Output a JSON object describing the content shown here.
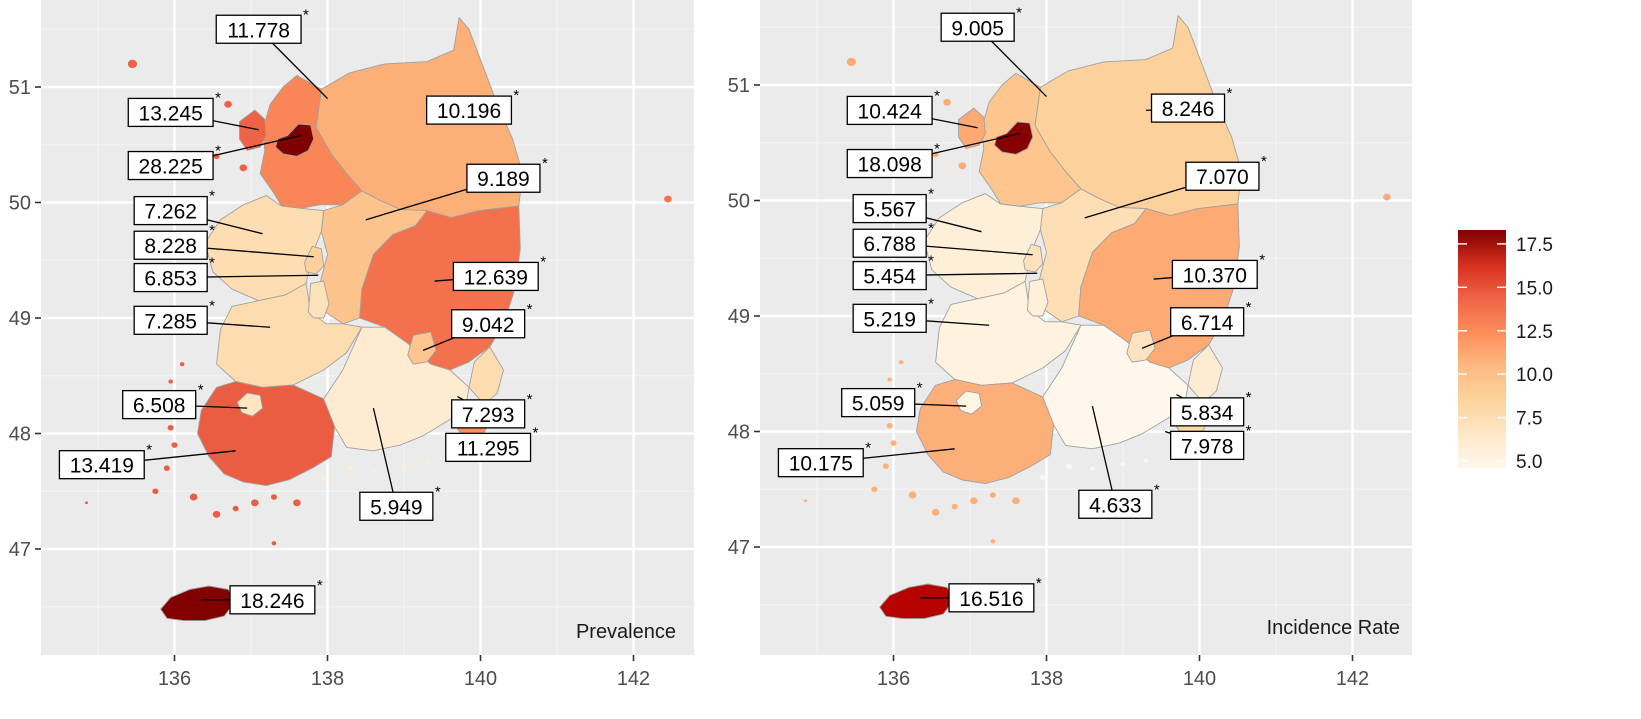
{
  "figure": {
    "x_axis_ticks": [
      136,
      138,
      140,
      142
    ],
    "y_axis_ticks": [
      47,
      48,
      49,
      50,
      51
    ],
    "significance_marker": "*"
  },
  "colors": {
    "scale": [
      "#fff7ec",
      "#fee8c8",
      "#fdd49e",
      "#fdbb84",
      "#fc8d59",
      "#ef6548",
      "#d7301f",
      "#b30000",
      "#7f0000"
    ],
    "panel_background": "#ebebeb",
    "grid": "#ffffff"
  },
  "legend": {
    "min": 4.6,
    "max": 18.3,
    "ticks": [
      "5.0",
      "7.5",
      "10.0",
      "12.5",
      "15.0",
      "17.5"
    ]
  },
  "chart_data": {
    "type": "choropleth",
    "xlim": [
      134.3,
      142.9
    ],
    "ylim": [
      46.14,
      51.76
    ],
    "x_ticks": [
      136,
      138,
      140,
      142
    ],
    "y_ticks": [
      47,
      48,
      49,
      50,
      51
    ],
    "legend_placement": "right",
    "grid": true,
    "panels": [
      {
        "title": "Prevalence",
        "values": {
          "gyeonggi": {
            "label": "11.778",
            "value": 11.778,
            "significant": true
          },
          "gangwon": {
            "label": "10.196",
            "value": 10.196,
            "significant": true
          },
          "incheon": {
            "label": "13.245",
            "value": 13.245,
            "significant": true
          },
          "seoul": {
            "label": "28.225",
            "value": 28.225,
            "significant": true
          },
          "chungbuk": {
            "label": "9.189",
            "value": 9.189,
            "significant": true
          },
          "chungnam": {
            "label": "7.262",
            "value": 7.262,
            "significant": true
          },
          "sejong": {
            "label": "8.228",
            "value": 8.228,
            "significant": true
          },
          "daejeon": {
            "label": "6.853",
            "value": 6.853,
            "significant": true
          },
          "gyeongbuk": {
            "label": "12.639",
            "value": 12.639,
            "significant": true
          },
          "jeonbuk": {
            "label": "7.285",
            "value": 7.285,
            "significant": true
          },
          "daegu": {
            "label": "9.042",
            "value": 9.042,
            "significant": true
          },
          "gwangju": {
            "label": "6.508",
            "value": 6.508,
            "significant": true
          },
          "ulsan": {
            "label": "7.293",
            "value": 7.293,
            "significant": true
          },
          "busan": {
            "label": "11.295",
            "value": 11.295,
            "significant": true
          },
          "jeonnam": {
            "label": "13.419",
            "value": 13.419,
            "significant": true
          },
          "gyeongnam": {
            "label": "5.949",
            "value": 5.949,
            "significant": true
          },
          "jeju": {
            "label": "18.246",
            "value": 18.246,
            "significant": true
          }
        }
      },
      {
        "title": "Incidence Rate",
        "values": {
          "gyeonggi": {
            "label": "9.005",
            "value": 9.005,
            "significant": true
          },
          "gangwon": {
            "label": "8.246",
            "value": 8.246,
            "significant": true
          },
          "incheon": {
            "label": "10.424",
            "value": 10.424,
            "significant": true
          },
          "seoul": {
            "label": "18.098",
            "value": 18.098,
            "significant": true
          },
          "chungbuk": {
            "label": "7.070",
            "value": 7.07,
            "significant": true
          },
          "chungnam": {
            "label": "5.567",
            "value": 5.567,
            "significant": true
          },
          "sejong": {
            "label": "6.788",
            "value": 6.788,
            "significant": true
          },
          "daejeon": {
            "label": "5.454",
            "value": 5.454,
            "significant": true
          },
          "gyeongbuk": {
            "label": "10.370",
            "value": 10.37,
            "significant": true
          },
          "jeonbuk": {
            "label": "5.219",
            "value": 5.219,
            "significant": true
          },
          "daegu": {
            "label": "6.714",
            "value": 6.714,
            "significant": true
          },
          "gwangju": {
            "label": "5.059",
            "value": 5.059,
            "significant": true
          },
          "ulsan": {
            "label": "5.834",
            "value": 5.834,
            "significant": true
          },
          "busan": {
            "label": "7.978",
            "value": 7.978,
            "significant": true
          },
          "jeonnam": {
            "label": "10.175",
            "value": 10.175,
            "significant": true
          },
          "gyeongnam": {
            "label": "4.633",
            "value": 4.633,
            "significant": true
          },
          "jeju": {
            "label": "16.516",
            "value": 16.516,
            "significant": true
          }
        }
      }
    ]
  }
}
